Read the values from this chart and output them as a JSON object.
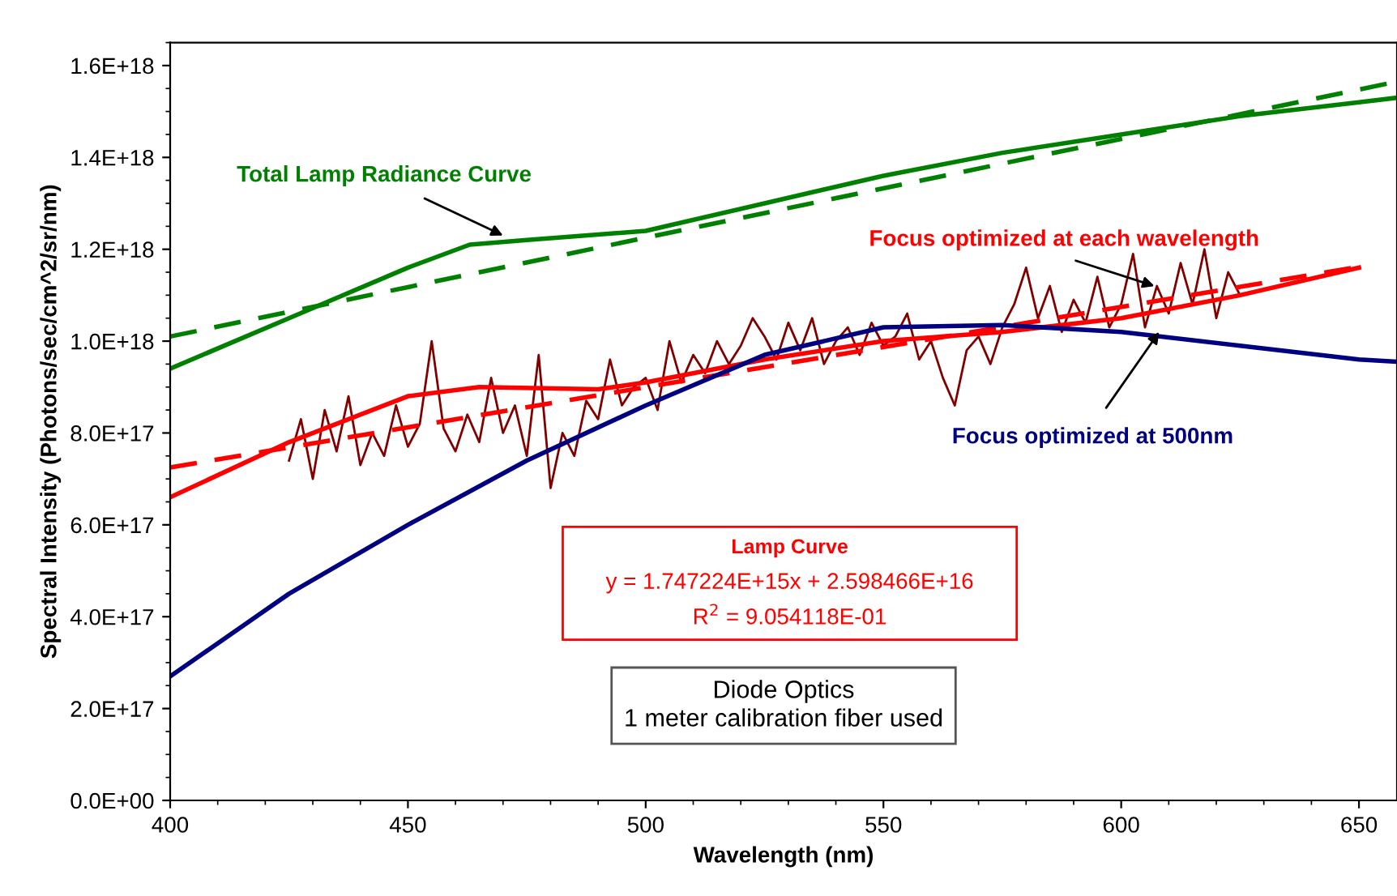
{
  "chart_data": {
    "type": "line",
    "xlabel": "Wavelength (nm)",
    "ylabel": "Spectral Intensity (Photons/sec/cm^2/sr/nm)",
    "xlim": [
      400,
      658
    ],
    "xticks": [
      400,
      450,
      500,
      550,
      600,
      650
    ],
    "ylim": [
      0,
      1.65e+18
    ],
    "yticks": [
      {
        "value": 0,
        "label": "0.0E+00"
      },
      {
        "value": 2e+17,
        "label": "2.0E+17"
      },
      {
        "value": 4e+17,
        "label": "4.0E+17"
      },
      {
        "value": 6e+17,
        "label": "6.0E+17"
      },
      {
        "value": 8e+17,
        "label": "8.0E+17"
      },
      {
        "value": 1e+18,
        "label": "1.0E+18"
      },
      {
        "value": 1.2e+18,
        "label": "1.2E+18"
      },
      {
        "value": 1.4e+18,
        "label": "1.4E+18"
      },
      {
        "value": 1.6e+18,
        "label": "1.6E+18"
      }
    ],
    "grid": false,
    "legend": false,
    "marker": "none",
    "series": [
      {
        "color": "#800000",
        "line_style": "solid",
        "x": [
          425,
          427.5,
          430,
          432.5,
          435,
          437.5,
          440,
          442.5,
          445,
          447.5,
          450,
          452.5,
          455,
          457.5,
          460,
          462.5,
          465,
          467.5,
          470,
          472.5,
          475,
          477.5,
          480,
          482.5,
          485,
          487.5,
          490,
          492.5,
          495,
          497.5,
          500,
          502.5,
          505,
          507.5,
          510,
          512.5,
          515,
          517.5,
          520,
          522.5,
          525,
          527.5,
          530,
          532.5,
          535,
          537.5,
          540,
          542.5,
          545,
          547.5,
          550,
          552.5,
          555,
          557.5,
          560,
          562.5,
          565,
          567.5,
          570,
          572.5,
          575,
          577.5,
          580,
          582.5,
          585,
          587.5,
          590,
          592.5,
          595,
          597.5,
          600,
          602.5,
          605,
          607.5,
          610,
          612.5,
          615,
          617.5,
          620,
          622.5,
          625
        ],
        "values": [
          7.4e+17,
          8.3e+17,
          7e+17,
          8.5e+17,
          7.6e+17,
          8.8e+17,
          7.3e+17,
          8e+17,
          7.5e+17,
          8.6e+17,
          7.7e+17,
          8.2e+17,
          1e+18,
          8.1e+17,
          7.6e+17,
          8.4e+17,
          7.8e+17,
          9.2e+17,
          8e+17,
          8.6e+17,
          7.5e+17,
          9.7e+17,
          6.8e+17,
          8e+17,
          7.5e+17,
          8.7e+17,
          8.3e+17,
          9.6e+17,
          8.6e+17,
          9e+17,
          9.2e+17,
          8.5e+17,
          1e+18,
          9.1e+17,
          9.7e+17,
          9.3e+17,
          1e+18,
          9.5e+17,
          9.9e+17,
          1.05e+18,
          1.01e+18,
          9.6e+17,
          1.04e+18,
          9.8e+17,
          1.05e+18,
          9.5e+17,
          1e+18,
          1.03e+18,
          9.7e+17,
          1.04e+18,
          9.9e+17,
          1.01e+18,
          1.06e+18,
          9.6e+17,
          1e+18,
          9.2e+17,
          8.6e+17,
          9.8e+17,
          1.01e+18,
          9.5e+17,
          1.03e+18,
          1.08e+18,
          1.16e+18,
          1.05e+18,
          1.12e+18,
          1.02e+18,
          1.09e+18,
          1.04e+18,
          1.14e+18,
          1.03e+18,
          1.08e+18,
          1.19e+18,
          1.03e+18,
          1.12e+18,
          1.06e+18,
          1.17e+18,
          1.08e+18,
          1.2e+18,
          1.05e+18,
          1.15e+18,
          1.1e+18
        ]
      },
      {
        "color": "#008000",
        "line_style": "solid",
        "x": [
          400,
          425,
          450,
          463,
          475,
          500,
          525,
          550,
          575,
          600,
          625,
          650,
          658
        ],
        "values": [
          9.4e+17,
          1.05e+18,
          1.16e+18,
          1.21e+18,
          1.22e+18,
          1.24e+18,
          1.3e+18,
          1.36e+18,
          1.41e+18,
          1.45e+18,
          1.49e+18,
          1.52e+18,
          1.53e+18
        ]
      },
      {
        "color": "#008000",
        "line_style": "dashed",
        "x": [
          400,
          658
        ],
        "values": [
          1.01e+18,
          1.565e+18
        ]
      },
      {
        "color": "#ff0000",
        "line_style": "solid",
        "x": [
          400,
          425,
          450,
          465,
          490,
          500,
          525,
          550,
          575,
          600,
          625,
          650
        ],
        "values": [
          6.6e+17,
          7.8e+17,
          8.8e+17,
          9e+17,
          8.95e+17,
          9.1e+17,
          9.6e+17,
          1e+18,
          1.02e+18,
          1.05e+18,
          1.1e+18,
          1.16e+18
        ]
      },
      {
        "color": "#ff0000",
        "line_style": "dashed",
        "x": [
          400,
          650
        ],
        "values": [
          7.25e+17,
          1.162e+18
        ]
      },
      {
        "color": "#000080",
        "line_style": "solid",
        "x": [
          400,
          425,
          450,
          475,
          500,
          525,
          550,
          575,
          600,
          625,
          650,
          658
        ],
        "values": [
          2.7e+17,
          4.5e+17,
          6e+17,
          7.4e+17,
          8.6e+17,
          9.7e+17,
          1.03e+18,
          1.035e+18,
          1.02e+18,
          9.9e+17,
          9.6e+17,
          9.55e+17
        ]
      }
    ],
    "annotations": [
      {
        "text": "Total Lamp Radiance Curve",
        "x": 470,
        "y": 1.23e+18
      },
      {
        "text": "Focus optimized at each wavelength",
        "x": 607,
        "y": 1.12e+18
      },
      {
        "text": "Focus optimized at 500nm",
        "x": 608,
        "y": 1.02e+18
      },
      "Lamp Curve",
      "y = 1.747224E+15x + 2.598466E+16",
      "R$^{2}$ = 9.054118E-01",
      "Diode Optics\n1 meter calibration fiber used"
    ]
  }
}
